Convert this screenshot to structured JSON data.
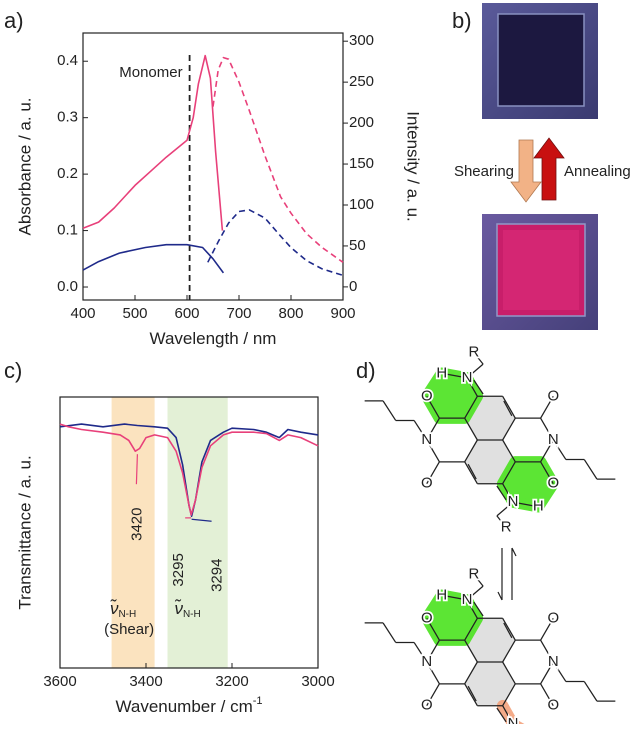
{
  "panel_labels": [
    "a)",
    "b)",
    "c)",
    "d)"
  ],
  "chart_data": [
    {
      "type": "line",
      "xlabel": "Wavelength / nm",
      "ylabel": "Absorbance / a. u.",
      "y2label": "Intensity / a. u.",
      "xlim": [
        400,
        900
      ],
      "xticks": [
        400,
        500,
        600,
        700,
        800,
        900
      ],
      "ylim": [
        -0.023,
        0.45
      ],
      "yticks": [
        {
          "value": 0,
          "label": "0.0"
        },
        0.1,
        0.2,
        0.3,
        0.4
      ],
      "y2lim": [
        -16,
        310
      ],
      "y2ticks": [
        0,
        50,
        100,
        150,
        200,
        250,
        300
      ],
      "annotations": [
        {
          "x": 605,
          "text": "Monomer"
        }
      ],
      "series": [
        {
          "color": "#e8407a",
          "x": [
            400,
            430,
            460,
            500,
            530,
            560,
            580,
            600,
            612,
            622,
            635,
            645,
            655,
            668
          ],
          "values": [
            0.104,
            0.115,
            0.14,
            0.18,
            0.205,
            0.23,
            0.245,
            0.26,
            0.3,
            0.36,
            0.41,
            0.37,
            0.24,
            0.1
          ]
        },
        {
          "color": "#1f2a8a",
          "x": [
            400,
            430,
            470,
            520,
            560,
            600,
            630,
            650,
            670
          ],
          "values": [
            0.03,
            0.045,
            0.06,
            0.07,
            0.075,
            0.075,
            0.07,
            0.05,
            0.025
          ]
        },
        {
          "color": "#e8407a",
          "dash": true,
          "axis": "y2",
          "x": [
            650,
            660,
            670,
            680,
            700,
            720,
            750,
            780,
            800,
            830,
            860,
            900
          ],
          "values": [
            220,
            265,
            280,
            278,
            250,
            215,
            160,
            110,
            90,
            65,
            48,
            30
          ]
        },
        {
          "color": "#1f2a8a",
          "dash": true,
          "axis": "y2",
          "x": [
            640,
            660,
            680,
            700,
            720,
            750,
            780,
            800,
            830,
            860,
            900
          ],
          "values": [
            30,
            55,
            78,
            92,
            94,
            84,
            62,
            48,
            32,
            22,
            14
          ]
        }
      ]
    },
    {
      "type": "line",
      "xlabel": "Wavenumber / cm",
      "xlabel_sup": "-1",
      "ylabel": "Transmittance / a. u.",
      "xlim": [
        3600,
        3000
      ],
      "xticks": [
        3600,
        3400,
        3200,
        3000
      ],
      "ylim": [
        0,
        1
      ],
      "bands": [
        {
          "from": 3480,
          "to": 3380,
          "color": "#fbe3bf",
          "label": "ν̃",
          "sub": "N-H",
          "note": "(Shear)"
        },
        {
          "from": 3350,
          "to": 3210,
          "color": "#e3f0d6",
          "label": "ν̃",
          "sub": "N-H"
        }
      ],
      "peaks": [
        {
          "x": 3420,
          "color": "#e8407a"
        },
        {
          "x": 3295,
          "color": "#e8407a"
        },
        {
          "x": 3294,
          "color": "#1f2a8a"
        }
      ],
      "series": [
        {
          "color": "#1f2a8a",
          "x": [
            3600,
            3550,
            3500,
            3450,
            3420,
            3380,
            3350,
            3330,
            3315,
            3300,
            3294,
            3285,
            3270,
            3250,
            3220,
            3200,
            3150,
            3120,
            3090,
            3070,
            3040,
            3000
          ],
          "values": [
            0.89,
            0.9,
            0.89,
            0.9,
            0.895,
            0.89,
            0.885,
            0.85,
            0.75,
            0.6,
            0.56,
            0.62,
            0.76,
            0.84,
            0.87,
            0.885,
            0.88,
            0.87,
            0.85,
            0.88,
            0.87,
            0.86
          ]
        },
        {
          "color": "#e8407a",
          "x": [
            3600,
            3580,
            3550,
            3500,
            3460,
            3440,
            3425,
            3415,
            3400,
            3380,
            3350,
            3330,
            3315,
            3300,
            3295,
            3285,
            3270,
            3250,
            3220,
            3200,
            3150,
            3120,
            3090,
            3070,
            3040,
            3000
          ],
          "values": [
            0.9,
            0.89,
            0.88,
            0.87,
            0.86,
            0.84,
            0.8,
            0.81,
            0.85,
            0.86,
            0.85,
            0.8,
            0.72,
            0.6,
            0.565,
            0.62,
            0.74,
            0.82,
            0.86,
            0.87,
            0.87,
            0.865,
            0.84,
            0.86,
            0.85,
            0.82
          ]
        }
      ]
    }
  ],
  "photos": {
    "forward": "Shearing",
    "backward": "Annealing"
  },
  "structures": [
    {
      "atoms": [
        "R",
        "H",
        "N",
        "O",
        "N",
        "O",
        "O",
        "N",
        "O",
        "N",
        "H",
        "R"
      ]
    },
    {
      "atoms": [
        "R",
        "H",
        "N",
        "O",
        "N",
        "O",
        "O",
        "N",
        "O",
        "N"
      ]
    }
  ]
}
